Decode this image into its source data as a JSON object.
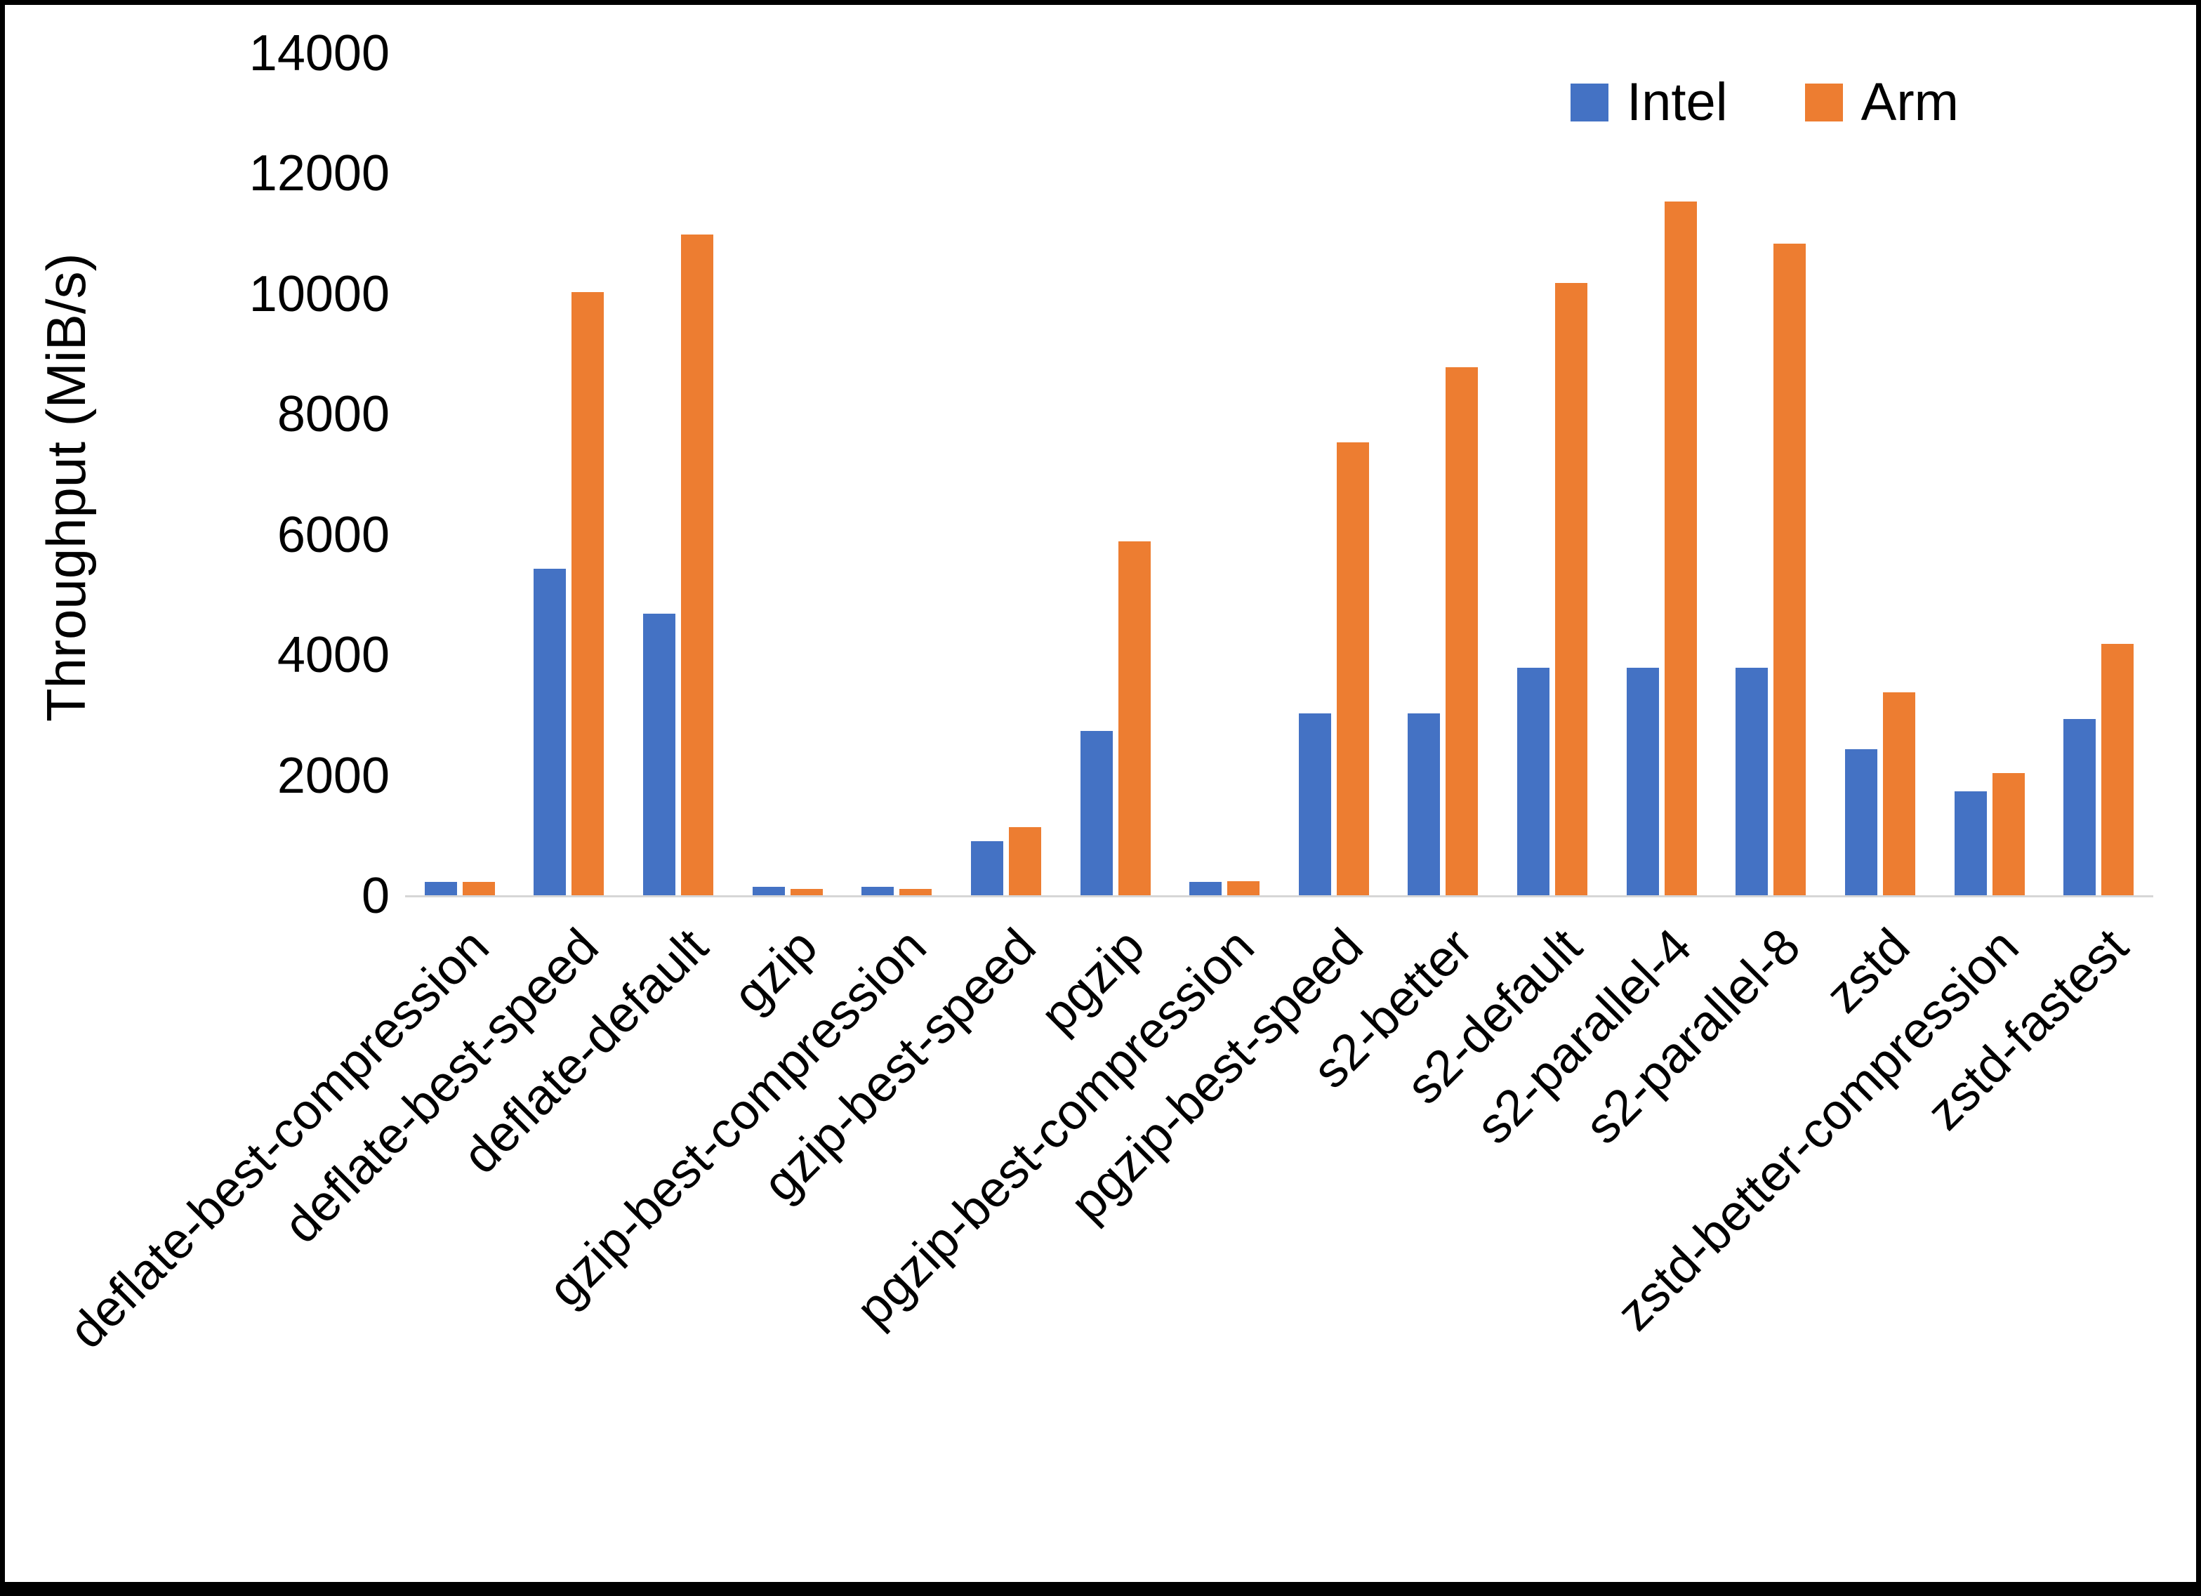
{
  "chart_data": {
    "type": "bar",
    "title": "",
    "xlabel": "",
    "ylabel": "Throughput (MiB/s)",
    "ylim": [
      0,
      14000
    ],
    "ytick_step": 2000,
    "grid": false,
    "legend_position": "top-right",
    "categories": [
      "deflate-best-compression",
      "deflate-best-speed",
      "deflate-default",
      "gzip",
      "gzip-best-compression",
      "gzip-best-speed",
      "pgzip",
      "pgzip-best-compression",
      "pgzip-best-speed",
      "s2-better",
      "s2-default",
      "s2-parallel-4",
      "s2-parallel-8",
      "zstd",
      "zstd-better-compression",
      "zstd-fastest"
    ],
    "series": [
      {
        "name": "Intel",
        "color": "#4472C4",
        "values": [
          250,
          5450,
          4700,
          160,
          160,
          920,
          2750,
          250,
          3050,
          3050,
          3800,
          3800,
          3800,
          2450,
          1750,
          2950
        ]
      },
      {
        "name": "Arm",
        "color": "#ED7D31",
        "values": [
          250,
          10050,
          11000,
          130,
          130,
          1150,
          5900,
          260,
          7550,
          8800,
          10200,
          11550,
          10850,
          3400,
          2050,
          4200
        ]
      }
    ]
  }
}
